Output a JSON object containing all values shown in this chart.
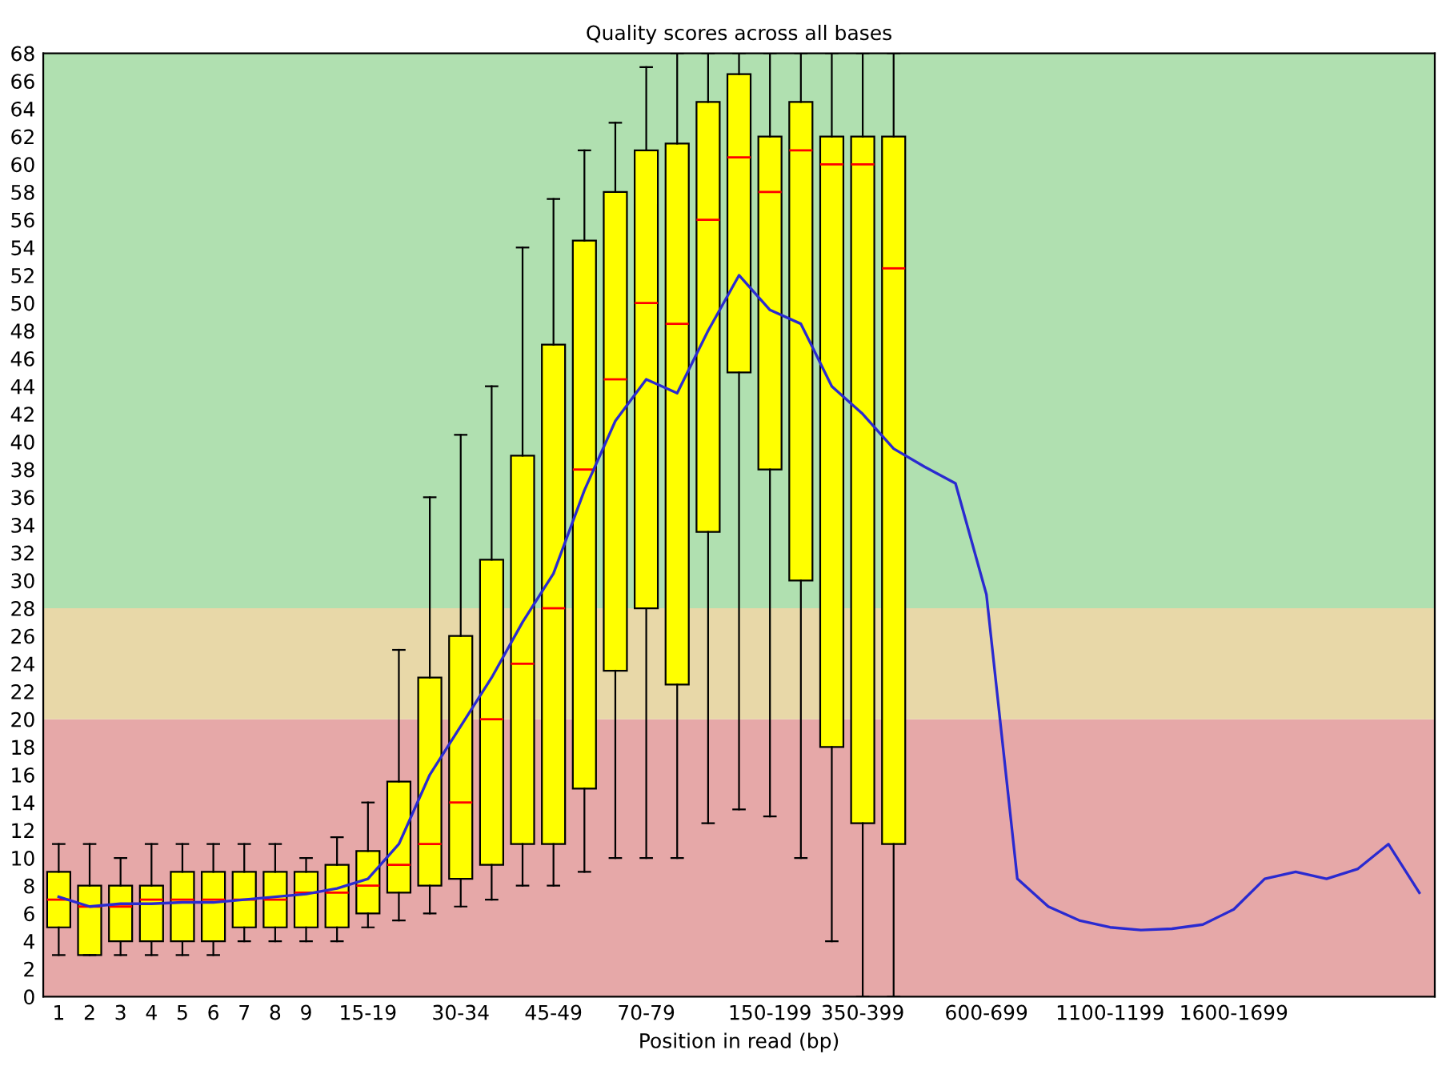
{
  "chart_data": {
    "type": "box",
    "title": "Quality scores across all bases",
    "xlabel": "Position in read (bp)",
    "categories": [
      "1",
      "2",
      "3",
      "4",
      "5",
      "6",
      "7",
      "8",
      "9",
      null,
      "15-19",
      null,
      null,
      "30-34",
      null,
      null,
      "45-49",
      null,
      null,
      "70-79",
      null,
      null,
      null,
      "150-199",
      null,
      null,
      "350-399",
      null,
      null,
      null,
      "600-699",
      null,
      null,
      null,
      "1100-1199",
      null,
      null,
      null,
      "1600-1699",
      null,
      null,
      null,
      null,
      null,
      null
    ],
    "ylim": [
      0,
      68
    ],
    "yticks": [
      0,
      2,
      4,
      6,
      8,
      10,
      12,
      14,
      16,
      18,
      20,
      22,
      24,
      26,
      28,
      30,
      32,
      34,
      36,
      38,
      40,
      42,
      44,
      46,
      48,
      50,
      52,
      54,
      56,
      58,
      60,
      62,
      64,
      66,
      68
    ],
    "grid": false,
    "bands": [
      {
        "axis": "y",
        "from": 0,
        "to": 20,
        "color": "#e6a8a8"
      },
      {
        "axis": "y",
        "from": 20,
        "to": 28,
        "color": "#e8d8a8"
      },
      {
        "axis": "y",
        "from": 28,
        "to": 68,
        "color": "#b0e0b0"
      }
    ],
    "series": [
      {
        "color": "#ffff00",
        "boxes": [
          {
            "low": 3,
            "q1": 5,
            "median": 7,
            "q3": 9,
            "high": 11
          },
          {
            "low": 3,
            "q1": 3,
            "median": 6.5,
            "q3": 8,
            "high": 11
          },
          {
            "low": 3,
            "q1": 4,
            "median": 6.5,
            "q3": 8,
            "high": 10
          },
          {
            "low": 3,
            "q1": 4,
            "median": 7,
            "q3": 8,
            "high": 11
          },
          {
            "low": 3,
            "q1": 4,
            "median": 7,
            "q3": 9,
            "high": 11
          },
          {
            "low": 3,
            "q1": 4,
            "median": 7,
            "q3": 9,
            "high": 11
          },
          {
            "low": 4,
            "q1": 5,
            "median": 7,
            "q3": 9,
            "high": 11
          },
          {
            "low": 4,
            "q1": 5,
            "median": 7,
            "q3": 9,
            "high": 11
          },
          {
            "low": 4,
            "q1": 5,
            "median": 7.5,
            "q3": 9,
            "high": 10
          },
          {
            "low": 4,
            "q1": 5,
            "median": 7.5,
            "q3": 9.5,
            "high": 11.5
          },
          {
            "low": 5,
            "q1": 6,
            "median": 8,
            "q3": 10.5,
            "high": 14
          },
          {
            "low": 5.5,
            "q1": 7.5,
            "median": 9.5,
            "q3": 15.5,
            "high": 25
          },
          {
            "low": 6,
            "q1": 8,
            "median": 11,
            "q3": 23,
            "high": 36
          },
          {
            "low": 6.5,
            "q1": 8.5,
            "median": 14,
            "q3": 26,
            "high": 40.5
          },
          {
            "low": 7,
            "q1": 9.5,
            "median": 20,
            "q3": 31.5,
            "high": 44
          },
          {
            "low": 8,
            "q1": 11,
            "median": 24,
            "q3": 39,
            "high": 54
          },
          {
            "low": 8,
            "q1": 11,
            "median": 28,
            "q3": 47,
            "high": 57.5
          },
          {
            "low": 9,
            "q1": 15,
            "median": 38,
            "q3": 54.5,
            "high": 61
          },
          {
            "low": 10,
            "q1": 23.5,
            "median": 44.5,
            "q3": 58,
            "high": 63
          },
          {
            "low": 10,
            "q1": 28,
            "median": 50,
            "q3": 61,
            "high": 67
          },
          {
            "low": 10,
            "q1": 22.5,
            "median": 48.5,
            "q3": 61.5,
            "high": 68
          },
          {
            "low": 12.5,
            "q1": 33.5,
            "median": 56,
            "q3": 64.5,
            "high": 68
          },
          {
            "low": 13.5,
            "q1": 45,
            "median": 60.5,
            "q3": 66.5,
            "high": 68
          },
          {
            "low": 13,
            "q1": 38,
            "median": 58,
            "q3": 62,
            "high": 68
          },
          {
            "low": 10,
            "q1": 30,
            "median": 61,
            "q3": 64.5,
            "high": 68
          },
          {
            "low": 4,
            "q1": 18,
            "median": 60,
            "q3": 62,
            "high": 68
          },
          {
            "low": 0,
            "q1": 12.5,
            "median": 60,
            "q3": 62,
            "high": 68
          },
          {
            "low": 0,
            "q1": 11,
            "median": 52.5,
            "q3": 62,
            "high": 68
          },
          null,
          null,
          null,
          null,
          null,
          null,
          null,
          null,
          null,
          null,
          null,
          null,
          null,
          null,
          null,
          null,
          null
        ]
      },
      {
        "type": "line",
        "color": "#2a2ad0",
        "values": [
          7.2,
          6.5,
          6.7,
          6.7,
          6.8,
          6.8,
          7,
          7.2,
          7.4,
          7.8,
          8.5,
          11,
          16,
          19.5,
          23,
          27,
          30.5,
          36.5,
          41.5,
          44.5,
          43.5,
          48,
          52,
          49.5,
          48.5,
          44,
          42,
          39.5,
          38.2,
          37,
          29,
          8.5,
          6.5,
          5.5,
          5,
          4.8,
          4.9,
          5.2,
          6.3,
          8.5,
          9,
          8.5,
          9.2,
          11,
          7.5
        ]
      }
    ]
  }
}
